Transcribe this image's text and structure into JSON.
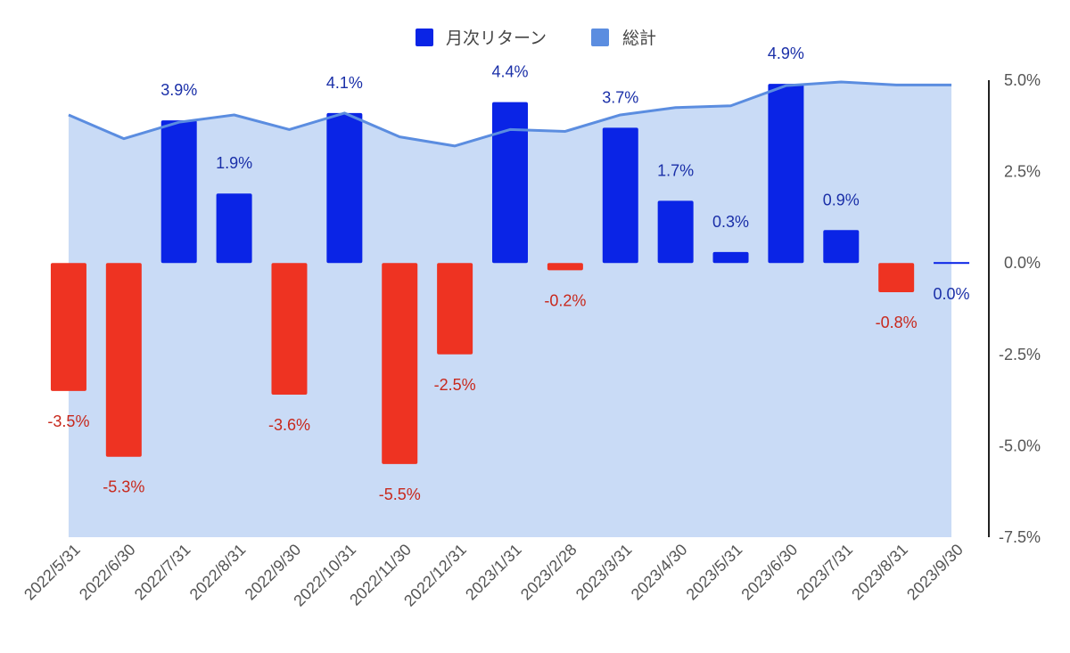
{
  "chart_data": {
    "type": "bar",
    "categories": [
      "2022/5/31",
      "2022/6/30",
      "2022/7/31",
      "2022/8/31",
      "2022/9/30",
      "2022/10/31",
      "2022/11/30",
      "2022/12/31",
      "2023/1/31",
      "2023/2/28",
      "2023/3/31",
      "2023/4/30",
      "2023/5/31",
      "2023/6/30",
      "2023/7/31",
      "2023/8/31",
      "2023/9/30"
    ],
    "series": [
      {
        "name": "月次リターン",
        "kind": "bar",
        "values": [
          -3.5,
          -5.3,
          3.9,
          1.9,
          -3.6,
          4.1,
          -5.5,
          -2.5,
          4.4,
          -0.2,
          3.7,
          1.7,
          0.3,
          4.9,
          0.9,
          -0.8,
          0.0
        ],
        "labels": [
          "-3.5%",
          "-5.3%",
          "3.9%",
          "1.9%",
          "-3.6%",
          "4.1%",
          "-5.5%",
          "-2.5%",
          "4.4%",
          "-0.2%",
          "3.7%",
          "1.7%",
          "0.3%",
          "4.9%",
          "0.9%",
          "-0.8%",
          "0.0%"
        ],
        "positive_color": "#0a24e6",
        "negative_color": "#ee3322",
        "positive_label_color": "#1a2fa8",
        "negative_label_color": "#c8281c"
      },
      {
        "name": "総計",
        "kind": "area",
        "values": [
          4.05,
          3.4,
          3.85,
          4.05,
          3.65,
          4.1,
          3.45,
          3.2,
          3.65,
          3.6,
          4.05,
          4.25,
          4.3,
          4.85,
          4.95,
          4.87,
          4.87
        ],
        "line_color": "#5b8de0",
        "fill_color": "#c9dbf6"
      }
    ],
    "yaxis": {
      "ticks": [
        5.0,
        2.5,
        0.0,
        -2.5,
        -5.0,
        -7.5
      ],
      "tick_labels": [
        "5.0%",
        "2.5%",
        "0.0%",
        "-2.5%",
        "-5.0%",
        "-7.5%"
      ],
      "ylim": [
        -7.5,
        5.0
      ],
      "side": "right"
    },
    "legend": {
      "position": "top-center",
      "items": [
        {
          "label": "月次リターン",
          "color": "#0a24e6"
        },
        {
          "label": "総計",
          "color": "#5b8de0"
        }
      ]
    },
    "grid": false,
    "title": "",
    "xlabel": "",
    "ylabel": ""
  }
}
